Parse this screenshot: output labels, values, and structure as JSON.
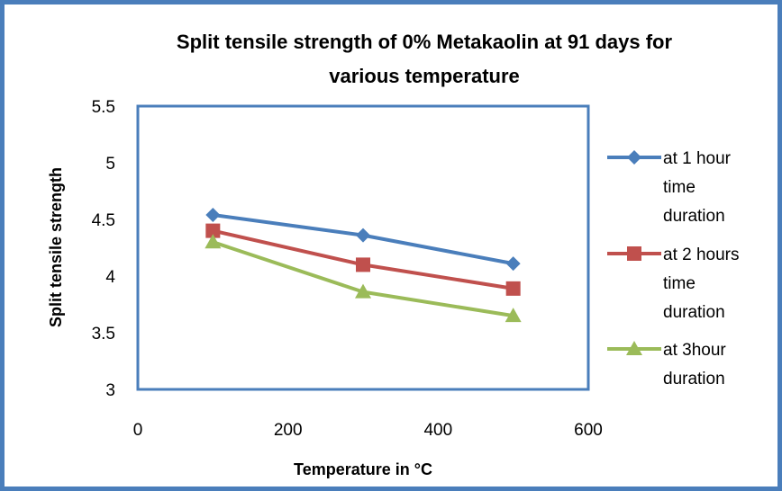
{
  "chart_data": {
    "type": "line",
    "title_lines": [
      "Split tensile strength of 0% Metakaolin at 91 days for",
      "various temperature"
    ],
    "xlabel": "Temperature in °C",
    "ylabel": "Split  tensile strength",
    "xlim": [
      0,
      600
    ],
    "ylim": [
      3,
      5.5
    ],
    "xticks": [
      0,
      200,
      400,
      600
    ],
    "yticks": [
      3,
      3.5,
      4,
      4.5,
      5,
      5.5
    ],
    "x": [
      100,
      300,
      500
    ],
    "grid": false,
    "legend_position": "right",
    "series": [
      {
        "name_lines": [
          "at 1 hour",
          "time",
          "duration"
        ],
        "values": [
          4.54,
          4.36,
          4.11
        ],
        "color": "#4a7ebb",
        "marker": "diamond"
      },
      {
        "name_lines": [
          "at 2 hours",
          "time",
          "duration"
        ],
        "values": [
          4.4,
          4.1,
          3.89
        ],
        "color": "#c0504d",
        "marker": "square"
      },
      {
        "name_lines": [
          "at 3hour",
          "duration"
        ],
        "values": [
          4.3,
          3.86,
          3.65
        ],
        "color": "#9bbb59",
        "marker": "triangle"
      }
    ],
    "plot_border_color": "#4a7ebb"
  }
}
